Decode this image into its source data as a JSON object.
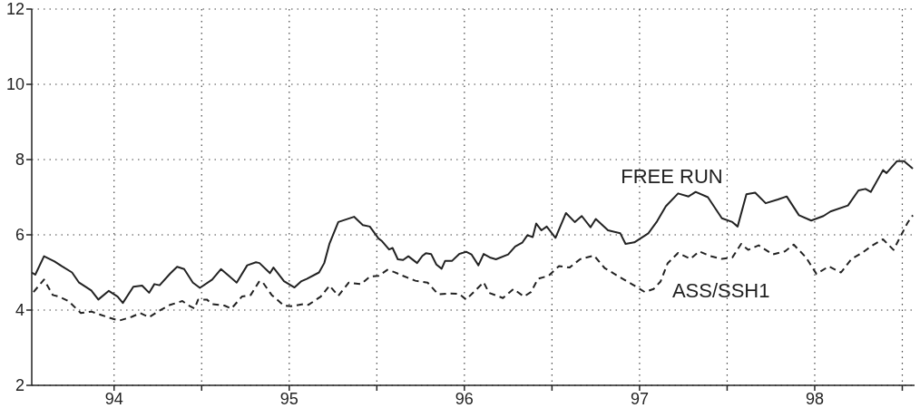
{
  "chart_data": {
    "type": "line",
    "xlim": [
      93.53,
      98.57
    ],
    "ylim": [
      2,
      12
    ],
    "xticks": [
      94,
      {
        "value": 94.5,
        "label": null
      },
      95,
      {
        "value": 95.5,
        "label": null
      },
      96,
      {
        "value": 96.5,
        "label": null
      },
      97,
      {
        "value": 97.5,
        "label": null
      },
      98,
      {
        "value": 98.5,
        "label": null
      }
    ],
    "yticks": [
      2,
      4,
      6,
      8,
      10,
      12
    ],
    "grid": true,
    "legend": false,
    "marker": "none",
    "series": [
      {
        "name": "FREE RUN",
        "color": "#222222",
        "line_style": "solid",
        "x": [
          93.53,
          93.55,
          93.6,
          93.66,
          93.7,
          93.76,
          93.8,
          93.87,
          93.91,
          93.97,
          94.02,
          94.05,
          94.11,
          94.16,
          94.2,
          94.23,
          94.26,
          94.32,
          94.36,
          94.4,
          94.45,
          94.49,
          94.56,
          94.61,
          94.66,
          94.7,
          94.76,
          94.81,
          94.83,
          94.89,
          94.91,
          94.97,
          95.03,
          95.07,
          95.1,
          95.17,
          95.2,
          95.23,
          95.28,
          95.37,
          95.42,
          95.46,
          95.51,
          95.53,
          95.57,
          95.59,
          95.62,
          95.65,
          95.68,
          95.73,
          95.76,
          95.78,
          95.81,
          95.84,
          95.87,
          95.89,
          95.93,
          95.97,
          96.01,
          96.04,
          96.08,
          96.11,
          96.15,
          96.18,
          96.25,
          96.29,
          96.33,
          96.36,
          96.39,
          96.41,
          96.44,
          96.47,
          96.52,
          96.58,
          96.63,
          96.67,
          96.72,
          96.75,
          96.82,
          96.89,
          96.92,
          96.97,
          97.05,
          97.1,
          97.15,
          97.22,
          97.28,
          97.32,
          97.39,
          97.47,
          97.53,
          97.56,
          97.61,
          97.66,
          97.72,
          97.79,
          97.84,
          97.91,
          97.98,
          98.05,
          98.09,
          98.19,
          98.25,
          98.29,
          98.32,
          98.39,
          98.41,
          98.47,
          98.51,
          98.56
        ],
        "values": [
          5.0,
          4.94,
          5.43,
          5.29,
          5.17,
          5.0,
          4.73,
          4.52,
          4.28,
          4.51,
          4.36,
          4.19,
          4.62,
          4.65,
          4.46,
          4.69,
          4.66,
          4.97,
          5.15,
          5.09,
          4.73,
          4.59,
          4.81,
          5.09,
          4.89,
          4.73,
          5.19,
          5.27,
          5.25,
          4.98,
          5.13,
          4.77,
          4.6,
          4.77,
          4.83,
          5.0,
          5.25,
          5.77,
          6.34,
          6.48,
          6.26,
          6.22,
          5.9,
          5.83,
          5.61,
          5.65,
          5.35,
          5.33,
          5.43,
          5.25,
          5.44,
          5.51,
          5.49,
          5.21,
          5.1,
          5.31,
          5.31,
          5.49,
          5.55,
          5.48,
          5.19,
          5.49,
          5.39,
          5.35,
          5.48,
          5.69,
          5.79,
          5.99,
          5.94,
          6.3,
          6.12,
          6.22,
          5.92,
          6.58,
          6.34,
          6.5,
          6.2,
          6.42,
          6.12,
          6.04,
          5.76,
          5.8,
          6.04,
          6.36,
          6.76,
          7.1,
          7.02,
          7.14,
          7.0,
          6.44,
          6.34,
          6.22,
          7.08,
          7.12,
          6.84,
          6.94,
          7.02,
          6.52,
          6.38,
          6.5,
          6.62,
          6.78,
          7.18,
          7.22,
          7.14,
          7.72,
          7.64,
          7.96,
          7.96,
          7.76
        ]
      },
      {
        "name": "ASS/SSH1",
        "color": "#222222",
        "line_style": "dashed",
        "x": [
          93.54,
          93.6,
          93.65,
          93.69,
          93.74,
          93.81,
          93.87,
          93.92,
          93.97,
          94.03,
          94.1,
          94.15,
          94.2,
          94.25,
          94.32,
          94.39,
          94.42,
          94.46,
          94.48,
          94.53,
          94.56,
          94.63,
          94.67,
          94.73,
          94.78,
          94.83,
          94.85,
          94.9,
          94.97,
          95.01,
          95.08,
          95.11,
          95.18,
          95.23,
          95.28,
          95.34,
          95.41,
          95.46,
          95.51,
          95.56,
          95.6,
          95.65,
          95.72,
          95.79,
          95.85,
          95.91,
          95.97,
          96.01,
          96.06,
          96.11,
          96.14,
          96.22,
          96.28,
          96.34,
          96.38,
          96.42,
          96.48,
          96.54,
          96.6,
          96.66,
          96.74,
          96.8,
          96.9,
          96.96,
          97.03,
          97.08,
          97.12,
          97.16,
          97.22,
          97.29,
          97.34,
          97.4,
          97.47,
          97.53,
          97.58,
          97.62,
          97.68,
          97.76,
          97.83,
          97.88,
          97.95,
          98.01,
          98.08,
          98.15,
          98.21,
          98.27,
          98.33,
          98.39,
          98.45,
          98.49,
          98.53,
          98.56
        ],
        "values": [
          4.48,
          4.81,
          4.4,
          4.35,
          4.24,
          3.92,
          3.96,
          3.88,
          3.8,
          3.72,
          3.82,
          3.92,
          3.81,
          3.96,
          4.14,
          4.24,
          4.14,
          4.04,
          4.28,
          4.28,
          4.16,
          4.12,
          4.04,
          4.36,
          4.4,
          4.77,
          4.73,
          4.4,
          4.12,
          4.1,
          4.16,
          4.14,
          4.36,
          4.65,
          4.38,
          4.73,
          4.69,
          4.89,
          4.91,
          5.07,
          5.01,
          4.91,
          4.78,
          4.73,
          4.42,
          4.44,
          4.43,
          4.28,
          4.51,
          4.74,
          4.46,
          4.32,
          4.56,
          4.36,
          4.48,
          4.83,
          4.91,
          5.17,
          5.13,
          5.35,
          5.45,
          5.12,
          4.84,
          4.68,
          4.48,
          4.56,
          4.76,
          5.24,
          5.52,
          5.36,
          5.56,
          5.44,
          5.36,
          5.4,
          5.76,
          5.6,
          5.72,
          5.48,
          5.56,
          5.74,
          5.4,
          4.96,
          5.16,
          5.0,
          5.36,
          5.52,
          5.72,
          5.88,
          5.6,
          5.96,
          6.32,
          6.52
        ]
      }
    ]
  }
}
